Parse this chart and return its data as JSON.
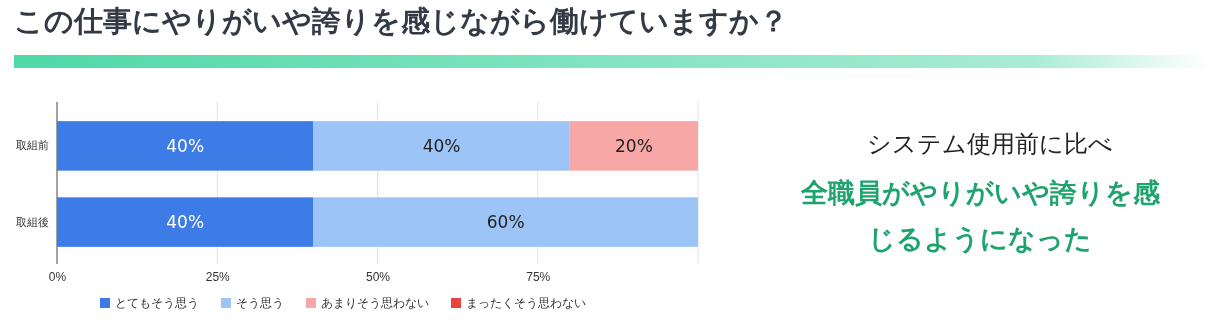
{
  "chart_data": {
    "type": "bar",
    "orientation": "horizontal",
    "stacked": true,
    "title": "この仕事にやりがいや誇りを感じながら働けていますか？",
    "categories": [
      "取組前",
      "取組後"
    ],
    "series": [
      {
        "name": "とてもそう思う",
        "color": "#3d7be6",
        "values": [
          40,
          40
        ],
        "value_labels": [
          "40%",
          "40%"
        ]
      },
      {
        "name": "そう思う",
        "color": "#9cc4f7",
        "values": [
          40,
          60
        ],
        "value_labels": [
          "40%",
          "60%"
        ]
      },
      {
        "name": "あまりそう思わない",
        "color": "#f7a7a5",
        "values": [
          20,
          0
        ],
        "value_labels": [
          "20%",
          null
        ]
      },
      {
        "name": "まったくそう思わない",
        "color": "#e8433d",
        "values": [
          0,
          0
        ],
        "value_labels": [
          null,
          null
        ]
      }
    ],
    "xlim": [
      0,
      100
    ],
    "xticks": [
      {
        "value": 0,
        "label": "0%"
      },
      {
        "value": 25,
        "label": "25%"
      },
      {
        "value": 50,
        "label": "50%"
      },
      {
        "value": 75,
        "label": "75%"
      },
      {
        "value": 100,
        "label": null
      }
    ],
    "grid": "x",
    "legend": "bottom",
    "annotations": [
      "システム使用前に比べ",
      "全職員がやりがいや誇りを感じるようになった"
    ]
  }
}
